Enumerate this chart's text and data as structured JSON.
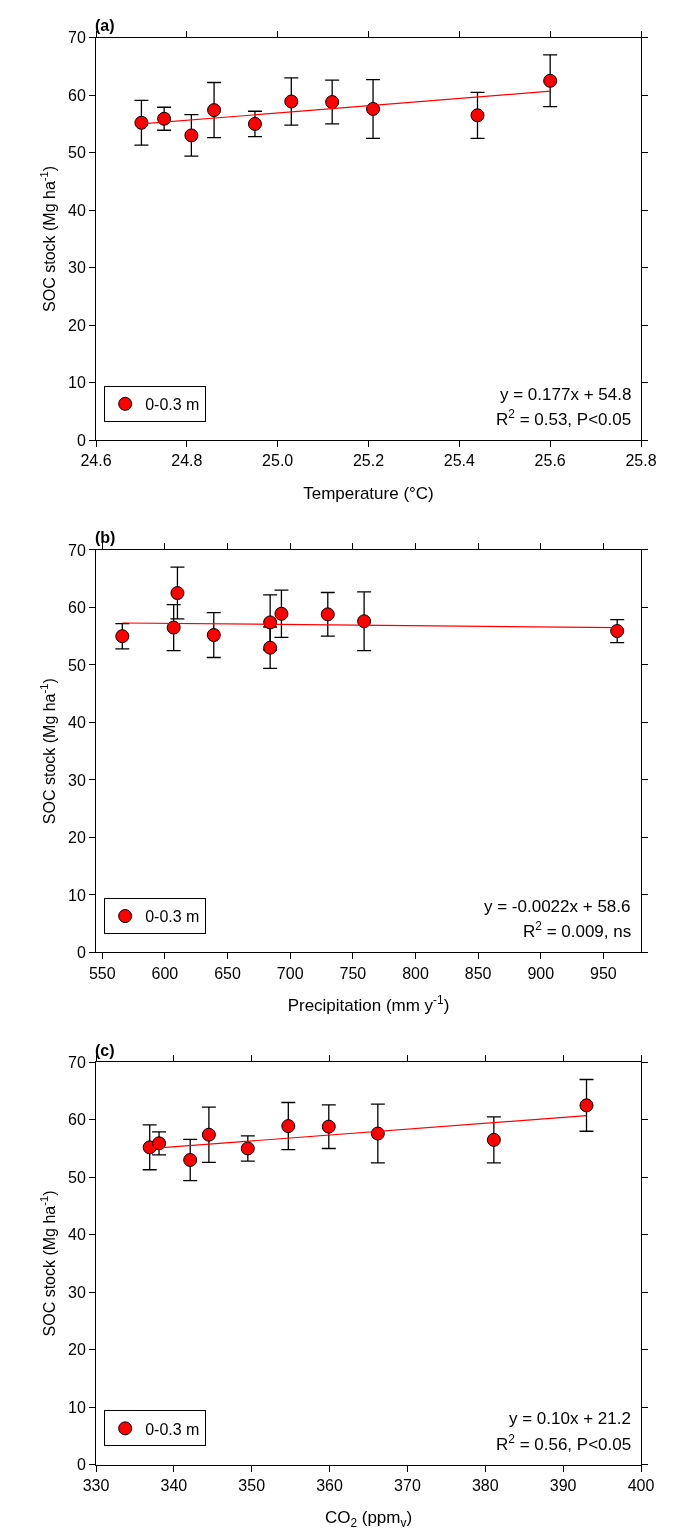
{
  "chart_data": [
    {
      "type": "scatter",
      "title": "(a)",
      "xlabel": "Temperature (°C)",
      "ylabel": "SOC stock (Mg ha$^{-1}$)",
      "xlim": [
        24.6,
        25.8
      ],
      "xticks": [
        24.6,
        24.8,
        {
          "value": 25.0,
          "label": "25.0"
        },
        25.2,
        25.4,
        25.6,
        25.8
      ],
      "ylim": [
        0,
        70
      ],
      "yticks": [
        0,
        10,
        20,
        30,
        40,
        50,
        60,
        70
      ],
      "legend": "bottom left",
      "marker": "circle",
      "series": [
        {
          "name": "0-0.3 m",
          "color": "#ff0000",
          "x": [
            24.7,
            24.75,
            24.81,
            24.86,
            24.95,
            25.03,
            25.12,
            25.21,
            25.44,
            25.6
          ],
          "values": [
            55.2,
            55.9,
            53.0,
            57.4,
            55.0,
            58.9,
            58.8,
            57.6,
            56.5,
            62.5
          ],
          "errors": [
            3.9,
            2.0,
            3.6,
            4.8,
            2.2,
            4.1,
            3.8,
            5.1,
            4.0,
            4.5
          ]
        },
        {
          "type": "line",
          "color": "#ff0000",
          "marker": "none",
          "x": [
            24.7,
            25.6
          ],
          "values": [
            55.0,
            60.7
          ]
        }
      ],
      "annotations": [
        "y = 0.177x + 54.8",
        "R$^{2}$ = 0.53, P<0.05"
      ]
    },
    {
      "type": "scatter",
      "title": "(b)",
      "xlabel": "Precipitation (mm y$^{-1}$)",
      "ylabel": "SOC stock (Mg ha$^{-1}$)",
      "xlim": [
        545,
        980
      ],
      "xticks": [
        550,
        600,
        650,
        700,
        750,
        800,
        850,
        900,
        950
      ],
      "ylim": [
        0,
        70
      ],
      "yticks": [
        0,
        10,
        20,
        30,
        40,
        50,
        60,
        70
      ],
      "legend": "bottom left",
      "marker": "circle",
      "series": [
        {
          "name": "0-0.3 m",
          "color": "#ff0000",
          "x": [
            566,
            607,
            610,
            639,
            684,
            684,
            693,
            730,
            759,
            961
          ],
          "values": [
            55.0,
            56.5,
            62.5,
            55.2,
            57.4,
            53.0,
            58.9,
            58.8,
            57.6,
            55.9
          ],
          "errors": [
            2.2,
            4.0,
            4.5,
            3.9,
            4.8,
            3.6,
            4.1,
            3.8,
            5.1,
            2.0
          ]
        },
        {
          "type": "line",
          "color": "#ff0000",
          "marker": "none",
          "x": [
            566,
            961
          ],
          "values": [
            57.3,
            56.5
          ]
        }
      ],
      "annotations": [
        "y = -0.0022x + 58.6",
        "R$^{2}$ = 0.009, ns"
      ]
    },
    {
      "type": "scatter",
      "title": "(c)",
      "xlabel": "CO$_{2}$ (ppm$_{v}$)",
      "ylabel": "SOC stock (Mg ha$^{-1}$)",
      "xlim": [
        330,
        400
      ],
      "xticks": [
        330,
        340,
        350,
        360,
        370,
        380,
        390,
        400
      ],
      "ylim": [
        0,
        70
      ],
      "yticks": [
        0,
        10,
        20,
        30,
        40,
        50,
        60,
        70
      ],
      "legend": "bottom left",
      "marker": "circle",
      "series": [
        {
          "name": "0-0.3 m",
          "color": "#ff0000",
          "x": [
            336.9,
            338.1,
            342.1,
            344.5,
            349.5,
            354.7,
            359.9,
            366.2,
            381.1,
            393.0
          ],
          "values": [
            55.2,
            55.9,
            53.0,
            57.4,
            55.0,
            58.9,
            58.8,
            57.6,
            56.5,
            62.5
          ],
          "errors": [
            3.9,
            2.0,
            3.6,
            4.8,
            2.2,
            4.1,
            3.8,
            5.1,
            4.0,
            4.5
          ]
        },
        {
          "type": "line",
          "color": "#ff0000",
          "marker": "none",
          "x": [
            338.1,
            393.0
          ],
          "values": [
            55.1,
            60.7
          ]
        }
      ],
      "annotations": [
        "y = 0.10x + 21.2",
        "R$^{2}$ = 0.56, P<0.05"
      ]
    }
  ]
}
